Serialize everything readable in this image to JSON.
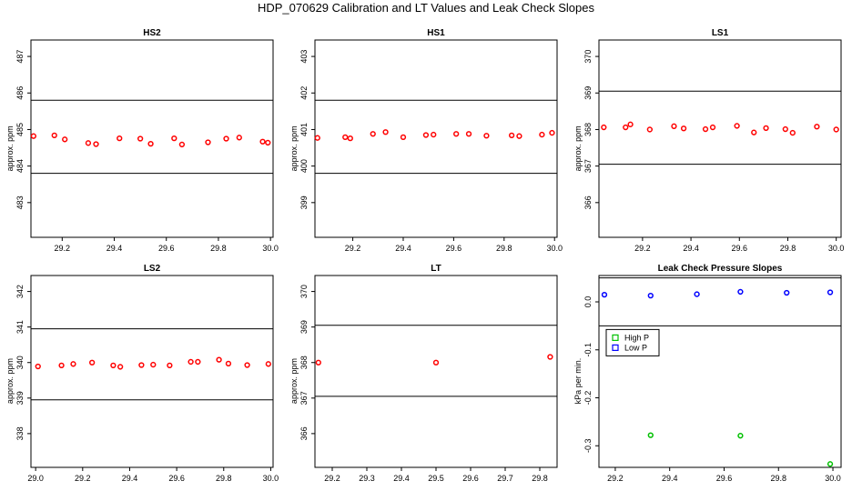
{
  "figure": {
    "title": "HDP_070629  Calibration and LT Values and Leak Check Slopes"
  },
  "chart_data": [
    {
      "type": "scatter",
      "title": "HS2",
      "xlabel": "",
      "ylabel": "approx. ppm",
      "xlim": [
        29.08,
        30.01
      ],
      "ylim": [
        482.05,
        487.45
      ],
      "xticks": [
        29.2,
        29.4,
        29.6,
        29.8,
        30.0
      ],
      "xticklabels": [
        "29.2",
        "29.4",
        "29.6",
        "29.8",
        "30.0"
      ],
      "yticks": [
        483,
        484,
        485,
        486,
        487
      ],
      "yticklabels": [
        "483",
        "484",
        "485",
        "486",
        "487"
      ],
      "hlines": [
        485.8,
        483.8
      ],
      "series": [
        {
          "name": "HS2",
          "color": "#ff0000",
          "x": [
            29.09,
            29.17,
            29.21,
            29.3,
            29.33,
            29.42,
            29.5,
            29.54,
            29.63,
            29.66,
            29.76,
            29.83,
            29.88,
            29.97,
            29.99
          ],
          "y": [
            484.82,
            484.84,
            484.73,
            484.63,
            484.6,
            484.76,
            484.75,
            484.61,
            484.76,
            484.59,
            484.65,
            484.75,
            484.78,
            484.67,
            484.64
          ]
        }
      ]
    },
    {
      "type": "scatter",
      "title": "HS1",
      "xlabel": "",
      "ylabel": "approx. ppm",
      "xlim": [
        29.05,
        30.01
      ],
      "ylim": [
        398.05,
        403.45
      ],
      "xticks": [
        29.2,
        29.4,
        29.6,
        29.8,
        30.0
      ],
      "xticklabels": [
        "29.2",
        "29.4",
        "29.6",
        "29.8",
        "30.0"
      ],
      "yticks": [
        399,
        400,
        401,
        402,
        403
      ],
      "yticklabels": [
        "399",
        "400",
        "401",
        "402",
        "403"
      ],
      "hlines": [
        401.8,
        399.8
      ],
      "series": [
        {
          "name": "HS1",
          "color": "#ff0000",
          "x": [
            29.06,
            29.17,
            29.19,
            29.28,
            29.33,
            29.4,
            29.49,
            29.52,
            29.61,
            29.66,
            29.73,
            29.83,
            29.86,
            29.95,
            29.99
          ],
          "y": [
            400.77,
            400.79,
            400.76,
            400.88,
            400.93,
            400.79,
            400.85,
            400.86,
            400.88,
            400.88,
            400.83,
            400.84,
            400.82,
            400.86,
            400.91
          ]
        }
      ]
    },
    {
      "type": "scatter",
      "title": "LS1",
      "xlabel": "",
      "ylabel": "approx. ppm",
      "xlim": [
        29.02,
        30.02
      ],
      "ylim": [
        365.05,
        370.45
      ],
      "xticks": [
        29.2,
        29.4,
        29.6,
        29.8,
        30.0
      ],
      "xticklabels": [
        "29.2",
        "29.4",
        "29.6",
        "29.8",
        "30.0"
      ],
      "yticks": [
        366,
        367,
        368,
        369,
        370
      ],
      "yticklabels": [
        "366",
        "367",
        "368",
        "369",
        "370"
      ],
      "hlines": [
        369.05,
        367.05
      ],
      "series": [
        {
          "name": "LS1",
          "color": "#ff0000",
          "x": [
            29.04,
            29.13,
            29.15,
            29.23,
            29.33,
            29.37,
            29.46,
            29.49,
            29.59,
            29.66,
            29.71,
            29.79,
            29.82,
            29.92,
            30.0
          ],
          "y": [
            368.06,
            368.06,
            368.14,
            368.0,
            368.09,
            368.03,
            368.01,
            368.06,
            368.1,
            367.92,
            368.04,
            368.01,
            367.91,
            368.08,
            368.0
          ]
        }
      ]
    },
    {
      "type": "scatter",
      "title": "LS2",
      "xlabel": "",
      "ylabel": "approx. ppm",
      "xlim": [
        28.98,
        30.01
      ],
      "ylim": [
        337.05,
        342.45
      ],
      "xticks": [
        29.0,
        29.2,
        29.4,
        29.6,
        29.8,
        30.0
      ],
      "xticklabels": [
        "29.0",
        "29.2",
        "29.4",
        "29.6",
        "29.8",
        "30.0"
      ],
      "yticks": [
        338,
        339,
        340,
        341,
        342
      ],
      "yticklabels": [
        "338",
        "339",
        "340",
        "341",
        "342"
      ],
      "hlines": [
        340.95,
        338.95
      ],
      "series": [
        {
          "name": "LS2",
          "color": "#ff0000",
          "x": [
            29.01,
            29.11,
            29.16,
            29.24,
            29.33,
            29.36,
            29.45,
            29.5,
            29.57,
            29.66,
            29.69,
            29.78,
            29.82,
            29.9,
            29.99
          ],
          "y": [
            339.89,
            339.92,
            339.96,
            340.0,
            339.92,
            339.88,
            339.93,
            339.94,
            339.92,
            340.02,
            340.02,
            340.08,
            339.97,
            339.93,
            339.96
          ]
        }
      ]
    },
    {
      "type": "scatter",
      "title": "LT",
      "xlabel": "",
      "ylabel": "approx. ppm",
      "xlim": [
        29.15,
        29.85
      ],
      "ylim": [
        365.05,
        370.45
      ],
      "xticks": [
        29.2,
        29.3,
        29.4,
        29.5,
        29.6,
        29.7,
        29.8
      ],
      "xticklabels": [
        "29.2",
        "29.3",
        "29.4",
        "29.5",
        "29.6",
        "29.7",
        "29.8"
      ],
      "yticks": [
        366,
        367,
        368,
        369,
        370
      ],
      "yticklabels": [
        "366",
        "367",
        "368",
        "369",
        "370"
      ],
      "hlines": [
        369.05,
        367.05
      ],
      "series": [
        {
          "name": "LT",
          "color": "#ff0000",
          "x": [
            29.16,
            29.5,
            29.83
          ],
          "y": [
            368.0,
            368.0,
            368.16
          ]
        }
      ]
    },
    {
      "type": "scatter",
      "title": "Leak Check Pressure Slopes",
      "xlabel": "",
      "ylabel": "kPa per min.",
      "xlim": [
        29.14,
        30.03
      ],
      "ylim": [
        -0.345,
        0.055
      ],
      "xticks": [
        29.2,
        29.4,
        29.6,
        29.8,
        30.0
      ],
      "xticklabels": [
        "29.2",
        "29.4",
        "29.6",
        "29.8",
        "30.0"
      ],
      "yticks": [
        -0.3,
        -0.2,
        -0.1,
        0.0
      ],
      "yticklabels": [
        "-0.3",
        "-0.2",
        "-0.1",
        "0.0"
      ],
      "hlines": [
        0.05,
        -0.05
      ],
      "legend": {
        "position": "top-left",
        "entries": [
          "High P",
          "Low P"
        ]
      },
      "series": [
        {
          "name": "High P",
          "color": "#00c000",
          "x": [
            29.33,
            29.66,
            29.99
          ],
          "y": [
            -0.278,
            -0.279,
            -0.338
          ]
        },
        {
          "name": "Low P",
          "color": "#0000ff",
          "x": [
            29.16,
            29.33,
            29.5,
            29.66,
            29.83,
            29.99
          ],
          "y": [
            0.015,
            0.013,
            0.016,
            0.021,
            0.019,
            0.02
          ]
        }
      ]
    }
  ]
}
